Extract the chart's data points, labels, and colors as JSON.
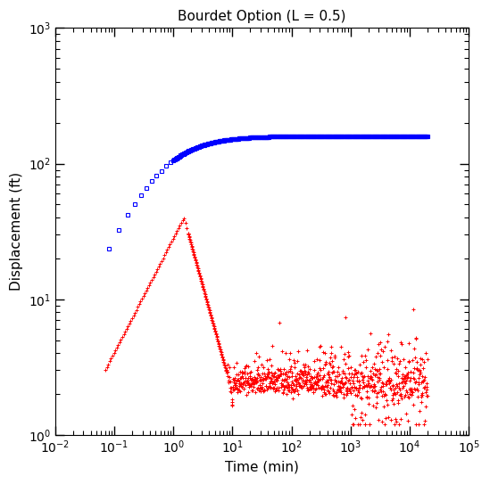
{
  "title": "Bourdet Option (L = 0.5)",
  "xlabel": "Time (min)",
  "ylabel": "Displacement (ft)",
  "xlim_log": [
    -2,
    5
  ],
  "ylim_log": [
    0,
    3
  ],
  "blue_color": "#0000FF",
  "red_color": "#FF0000",
  "figsize": [
    5.49,
    5.43
  ],
  "dpi": 100
}
